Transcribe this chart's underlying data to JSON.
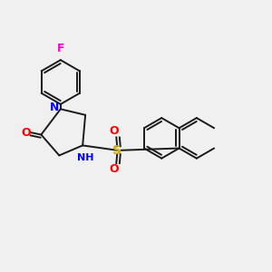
{
  "background_color": "#f0f0f0",
  "bond_color": "#1a1a1a",
  "atom_colors": {
    "N": "#0000ff",
    "O": "#ff0000",
    "S": "#ccaa00",
    "F": "#ff00cc",
    "NH": "#0000ff"
  },
  "figsize": [
    3.0,
    3.0
  ],
  "dpi": 100
}
